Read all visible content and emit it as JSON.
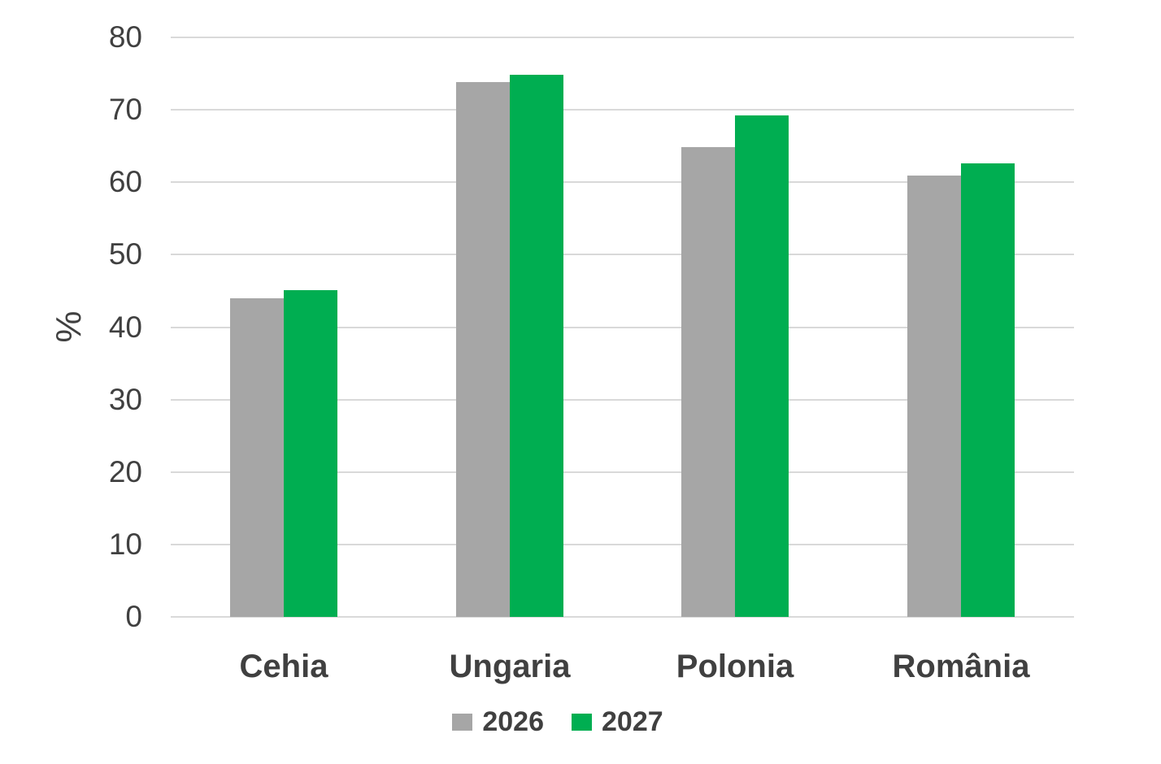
{
  "chart_data": {
    "type": "bar",
    "title": "",
    "ylabel": "%",
    "xlabel": "",
    "categories": [
      "Cehia",
      "Ungaria",
      "Polonia",
      "România"
    ],
    "series": [
      {
        "name": "2026",
        "color": "#A6A6A6",
        "values": [
          44.0,
          73.8,
          64.9,
          60.9
        ]
      },
      {
        "name": "2027",
        "color": "#00AE51",
        "values": [
          45.1,
          74.8,
          69.2,
          62.6
        ]
      }
    ],
    "ylim": [
      0,
      80
    ],
    "ytick_step": 10,
    "yticks": [
      0,
      10,
      20,
      30,
      40,
      50,
      60,
      70,
      80
    ],
    "grid": true,
    "legend_position": "bottom",
    "colors": {
      "gridline": "#D9D9D9",
      "axis_text": "#404040",
      "background": "#FFFFFF"
    }
  }
}
